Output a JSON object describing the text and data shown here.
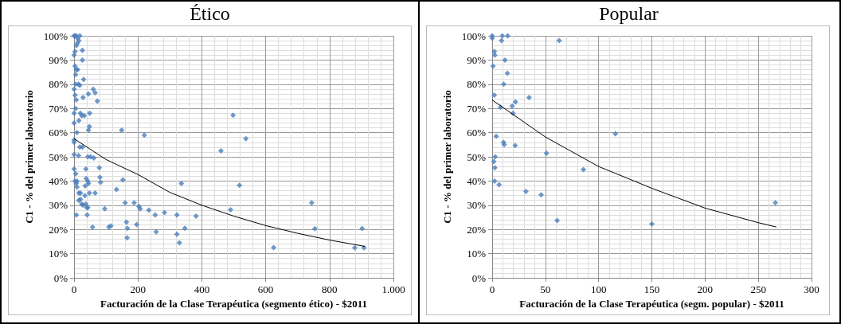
{
  "chart_data": [
    {
      "type": "scatter",
      "title": "Ético",
      "xlabel": "Facturación de la Clase Terapéutica (segmento ético) - $2011",
      "ylabel": "C1 - % del primer laboratorio",
      "grid": true,
      "marker": "diamond",
      "xlim": [
        0,
        1000
      ],
      "xticks": [
        0,
        200,
        400,
        600,
        800,
        {
          "value": 1000,
          "label": "1.000"
        }
      ],
      "ylim": [
        0,
        100
      ],
      "yticks": [
        {
          "value": 0,
          "label": "0%"
        },
        {
          "value": 10,
          "label": "10%"
        },
        {
          "value": 20,
          "label": "20%"
        },
        {
          "value": 30,
          "label": "30%"
        },
        {
          "value": 40,
          "label": "40%"
        },
        {
          "value": 50,
          "label": "50%"
        },
        {
          "value": 60,
          "label": "60%"
        },
        {
          "value": 70,
          "label": "70%"
        },
        {
          "value": 80,
          "label": "80%"
        },
        {
          "value": 90,
          "label": "90%"
        },
        {
          "value": 100,
          "label": "100%"
        }
      ],
      "series": [
        {
          "type": "scatter",
          "color": "#4a7ebb",
          "x": [
            0,
            3,
            7,
            11,
            18,
            15,
            11,
            7,
            26,
            3,
            0,
            26,
            3,
            7,
            11,
            5,
            30,
            5,
            18,
            14,
            0,
            60,
            66,
            45,
            3,
            28,
            7,
            73,
            5,
            20,
            49,
            24,
            32,
            0,
            15,
            0,
            48,
            45,
            149,
            220,
            9,
            0,
            0,
            18,
            26,
            0,
            14,
            43,
            52,
            62,
            79,
            37,
            0,
            5,
            81,
            38,
            43,
            3,
            9,
            45,
            83,
            7,
            35,
            9,
            153,
            336,
            15,
            20,
            48,
            66,
            34,
            133,
            20,
            15,
            24,
            37,
            28,
            40,
            43,
            96,
            160,
            188,
            203,
            207,
            234,
            283,
            254,
            322,
            382,
            7,
            41,
            164,
            58,
            109,
            115,
            167,
            196,
            257,
            347,
            322,
            330,
            166,
            460,
            498,
            490,
            538,
            518,
            625,
            744,
            754,
            879,
            902,
            908
          ],
          "values": [
            100,
            100,
            100,
            99,
            100,
            98,
            97,
            96,
            94,
            93.5,
            92,
            90,
            87.5,
            86,
            86,
            84,
            82,
            80,
            79.5,
            80,
            78,
            78,
            76.5,
            76,
            75.5,
            74.5,
            73.5,
            73,
            70,
            68,
            68,
            67,
            67,
            68,
            65,
            64,
            62.5,
            61,
            61,
            59,
            60,
            57,
            56,
            54,
            54,
            51,
            50.5,
            50,
            50,
            49.5,
            45.5,
            45,
            45,
            43,
            41.5,
            41,
            40,
            40,
            40,
            39,
            39.5,
            39,
            38,
            37.5,
            40.5,
            39,
            35,
            35,
            35,
            35,
            34,
            36.5,
            32.5,
            32,
            30.5,
            30.5,
            30,
            29,
            29,
            28.5,
            31,
            31,
            29.5,
            28.5,
            28,
            27,
            26,
            26,
            25.5,
            26,
            26,
            23,
            21,
            21,
            21.5,
            20.5,
            22,
            19,
            20.5,
            18,
            14.5,
            16.5,
            52.5,
            67.2,
            28.1,
            57.5,
            38.2,
            12.5,
            31,
            20.3,
            12.4,
            20.4,
            12.4
          ]
        },
        {
          "type": "line",
          "marker": "none",
          "color": "#000000",
          "x": [
            0,
            100,
            200,
            300,
            400,
            500,
            600,
            700,
            800,
            910
          ],
          "values": [
            57.5,
            48.9,
            42.7,
            35.3,
            30,
            25.5,
            21.6,
            18.4,
            15.6,
            13
          ]
        }
      ]
    },
    {
      "type": "scatter",
      "title": "Popular",
      "xlabel": "Facturación de la Clase Terapéutica (segm. popular) - $2011",
      "ylabel": "C1 - % del primer laboratorio",
      "grid": true,
      "marker": "diamond",
      "xlim": [
        0,
        300
      ],
      "xticks": [
        0,
        50,
        100,
        150,
        200,
        250,
        300
      ],
      "ylim": [
        0,
        100
      ],
      "yticks": [
        {
          "value": 0,
          "label": "0%"
        },
        {
          "value": 10,
          "label": "10%"
        },
        {
          "value": 20,
          "label": "20%"
        },
        {
          "value": 30,
          "label": "30%"
        },
        {
          "value": 40,
          "label": "40%"
        },
        {
          "value": 50,
          "label": "50%"
        },
        {
          "value": 60,
          "label": "60%"
        },
        {
          "value": 70,
          "label": "70%"
        },
        {
          "value": 80,
          "label": "80%"
        },
        {
          "value": 90,
          "label": "90%"
        },
        {
          "value": 100,
          "label": "100%"
        }
      ],
      "series": [
        {
          "type": "scatter",
          "color": "#4a7ebb",
          "x": [
            0,
            0,
            9.5,
            14.6,
            8.8,
            63,
            2,
            2.5,
            12,
            0.8,
            14.3,
            10.8,
            2,
            34.7,
            21.9,
            18.8,
            7.8,
            19.6,
            3.8,
            10.6,
            11.3,
            21.6,
            51,
            2.8,
            1.5,
            2.5,
            85.7,
            2.3,
            6.5,
            31.7,
            46,
            61,
            115.75,
            150,
            266
          ],
          "values": [
            100,
            99,
            100,
            100,
            98,
            98,
            93.5,
            92,
            90,
            87.5,
            84.5,
            80,
            75.5,
            74.5,
            72.7,
            71,
            70.5,
            68,
            58.5,
            56,
            55,
            54.7,
            51.5,
            50,
            48,
            45.5,
            44.7,
            40,
            38.5,
            35.7,
            34.3,
            23.7,
            59.5,
            22.3,
            31
          ]
        },
        {
          "type": "line",
          "marker": "none",
          "color": "#000000",
          "x": [
            0,
            50,
            100,
            150,
            200,
            250,
            267
          ],
          "values": [
            73.5,
            58.2,
            46,
            37,
            28.8,
            22.8,
            21
          ]
        }
      ]
    }
  ]
}
